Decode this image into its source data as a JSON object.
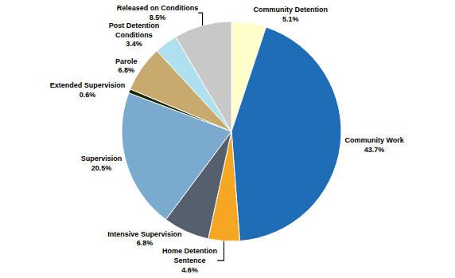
{
  "chart_data": {
    "type": "pie",
    "categories": [
      "Community Detention",
      "Community Work",
      "Home Detention\nSentence",
      "Intensive Supervision",
      "Supervision",
      "Extended Supervision",
      "Parole",
      "Post Detention\nConditions",
      "Released on Conditions"
    ],
    "values": [
      5.1,
      43.7,
      4.6,
      6.8,
      20.5,
      0.6,
      6.8,
      3.4,
      8.5
    ],
    "value_labels": [
      "5.1%",
      "43.7%",
      "4.6%",
      "6.8%",
      "20.5%",
      "0.6%",
      "6.8%",
      "3.4%",
      "8.5%"
    ],
    "colors": [
      "#ffffcc",
      "#1f6db5",
      "#f5a623",
      "#555f6e",
      "#7aabcf",
      "#1a2800",
      "#c8a96e",
      "#aee0f0",
      "#c8c8c8"
    ],
    "data_labels": true
  }
}
